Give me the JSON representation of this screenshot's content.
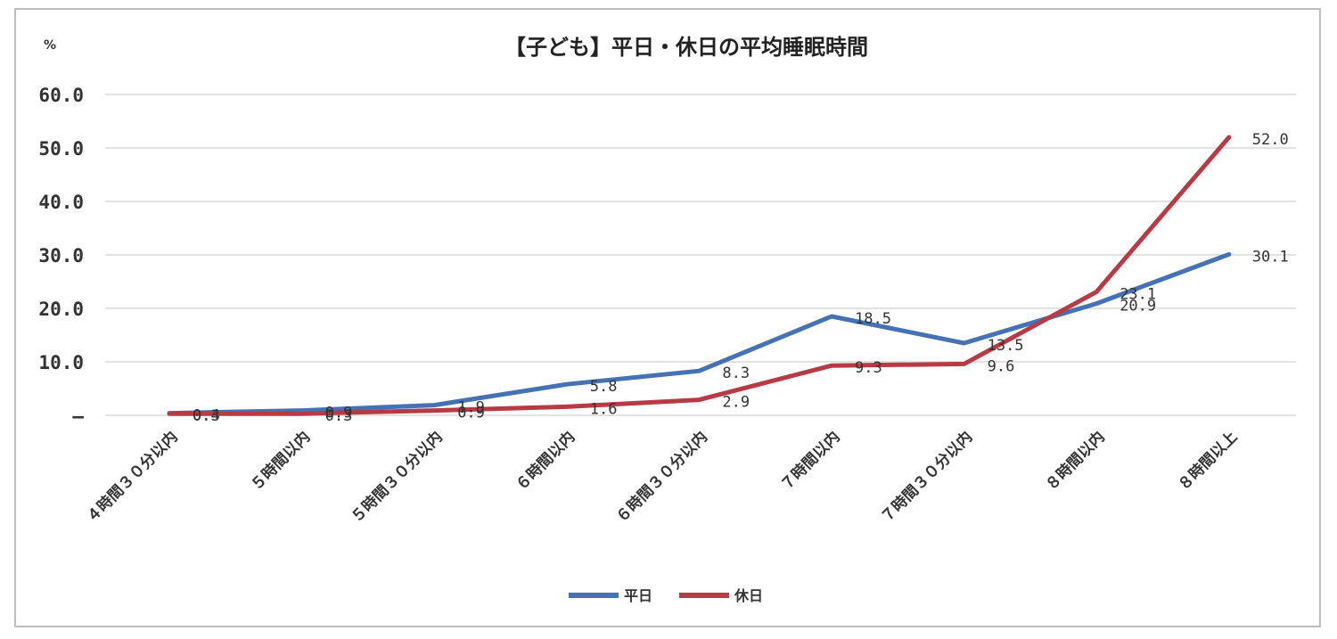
{
  "chart_data": {
    "type": "line",
    "title": "【子ども】平日・休日の平均睡眠時間",
    "unit_label": "%",
    "xlabel": "",
    "ylabel": "",
    "ylim": [
      0,
      60
    ],
    "yticks": [
      {
        "value": 0,
        "label": "–"
      },
      {
        "value": 10,
        "label": "10.0"
      },
      {
        "value": 20,
        "label": "20.0"
      },
      {
        "value": 30,
        "label": "30.0"
      },
      {
        "value": 40,
        "label": "40.0"
      },
      {
        "value": 50,
        "label": "50.0"
      },
      {
        "value": 60,
        "label": "60.0"
      }
    ],
    "grid": true,
    "legend_position": "bottom",
    "categories": [
      "４時間３０分以内",
      "５時間以内",
      "５時間３０分以内",
      "６時間以内",
      "６時間３０分以内",
      "７時間以内",
      "７時間３０分以内",
      "８時間以内",
      "８時間以上"
    ],
    "series": [
      {
        "name": "平日",
        "color": "#4472b4",
        "values": [
          0.4,
          0.9,
          1.9,
          5.8,
          8.3,
          18.5,
          13.5,
          20.9,
          30.1
        ],
        "labels": [
          "0.4",
          "0.9",
          "1.9",
          "5.8",
          "8.3",
          "18.5",
          "13.5",
          "20.9",
          "30.1"
        ]
      },
      {
        "name": "休日",
        "color": "#b83a44",
        "values": [
          0.3,
          0.3,
          0.9,
          1.6,
          2.9,
          9.3,
          9.6,
          23.1,
          52.0
        ],
        "labels": [
          "0.3",
          "0.3",
          "0.9",
          "1.6",
          "2.9",
          "9.3",
          "9.6",
          "23.1",
          "52.0"
        ]
      }
    ]
  }
}
